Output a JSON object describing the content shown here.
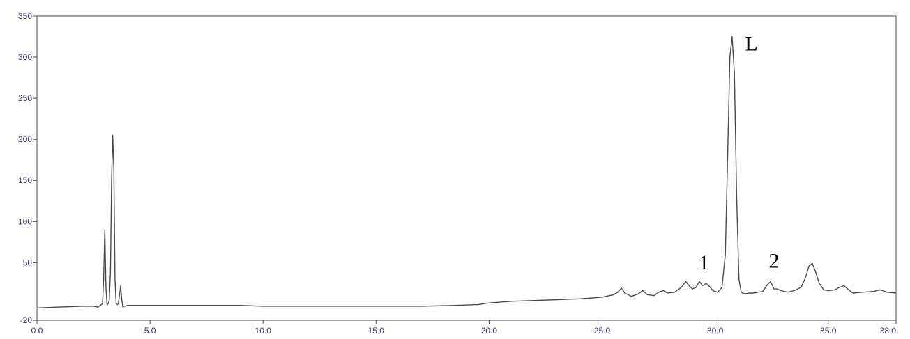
{
  "chart_data": {
    "type": "line",
    "title": "",
    "xlabel": "",
    "ylabel": "",
    "xlim": [
      0.0,
      38.0
    ],
    "ylim": [
      -20,
      350
    ],
    "x_ticks": [
      0.0,
      5.0,
      10.0,
      15.0,
      20.0,
      25.0,
      30.0,
      35.0,
      38.0
    ],
    "x_tick_labels": [
      "0.0",
      "5.0",
      "10.0",
      "15.0",
      "20.0",
      "25.0",
      "30.0",
      "35.0",
      "38.0"
    ],
    "y_ticks": [
      -20,
      50,
      100,
      150,
      200,
      250,
      300,
      350
    ],
    "y_tick_labels": [
      "-20",
      "50",
      "100",
      "150",
      "200",
      "250",
      "300",
      "350"
    ],
    "grid": false,
    "legend": "none",
    "series": [
      {
        "x": [
          0.0,
          1.0,
          2.0,
          2.5,
          2.7,
          2.8,
          2.9,
          2.95,
          3.0,
          3.05,
          3.1,
          3.15,
          3.2,
          3.25,
          3.3,
          3.35,
          3.4,
          3.45,
          3.5,
          3.55,
          3.6,
          3.65,
          3.7,
          3.75,
          3.8,
          3.85,
          3.9,
          4.0,
          5.0,
          7.0,
          9.0,
          10.0,
          12.0,
          14.0,
          15.0,
          17.0,
          18.5,
          19.5,
          20.0,
          21.0,
          22.0,
          23.0,
          24.0,
          25.0,
          25.5,
          25.7,
          25.85,
          26.0,
          26.3,
          26.6,
          26.8,
          27.0,
          27.3,
          27.5,
          27.7,
          27.9,
          28.2,
          28.5,
          28.7,
          28.85,
          29.0,
          29.15,
          29.3,
          29.45,
          29.6,
          29.75,
          29.9,
          30.1,
          30.3,
          30.45,
          30.55,
          30.65,
          30.75,
          30.85,
          30.95,
          31.05,
          31.15,
          31.3,
          31.5,
          31.7,
          31.9,
          32.1,
          32.3,
          32.45,
          32.6,
          32.75,
          32.9,
          33.2,
          33.5,
          33.8,
          34.0,
          34.15,
          34.3,
          34.45,
          34.6,
          34.8,
          35.0,
          35.3,
          35.5,
          35.7,
          35.9,
          36.1,
          36.5,
          37.0,
          37.3,
          37.6,
          38.0
        ],
        "y": [
          -5,
          -4,
          -3,
          -3,
          -4,
          -2,
          0,
          30,
          90,
          20,
          -1,
          0,
          5,
          40,
          150,
          205,
          165,
          30,
          0,
          -1,
          0,
          10,
          22,
          5,
          -4,
          -3,
          -3,
          -2,
          -2,
          -2,
          -2,
          -3,
          -3,
          -3,
          -3,
          -3,
          -2,
          -1,
          1,
          3,
          4,
          5,
          6,
          8,
          11,
          14,
          19,
          13,
          9,
          12,
          16,
          11,
          10,
          14,
          16,
          13,
          14,
          20,
          27,
          22,
          18,
          20,
          27,
          22,
          25,
          21,
          16,
          14,
          20,
          60,
          180,
          300,
          325,
          280,
          130,
          30,
          14,
          12,
          13,
          13,
          14,
          15,
          23,
          27,
          18,
          18,
          16,
          14,
          16,
          20,
          32,
          46,
          49,
          38,
          25,
          17,
          16,
          17,
          20,
          22,
          17,
          13,
          14,
          15,
          17,
          14,
          13
        ]
      }
    ],
    "annotations": [
      {
        "text": "L",
        "x": 31.6,
        "y": 308
      },
      {
        "text": "1",
        "x": 29.5,
        "y": 42
      },
      {
        "text": "2",
        "x": 32.6,
        "y": 44
      }
    ],
    "colors": {
      "line": "#4a4a4a",
      "axis": "#444444",
      "tick_text": "#3a3a6e",
      "annotation": "#000000"
    }
  }
}
